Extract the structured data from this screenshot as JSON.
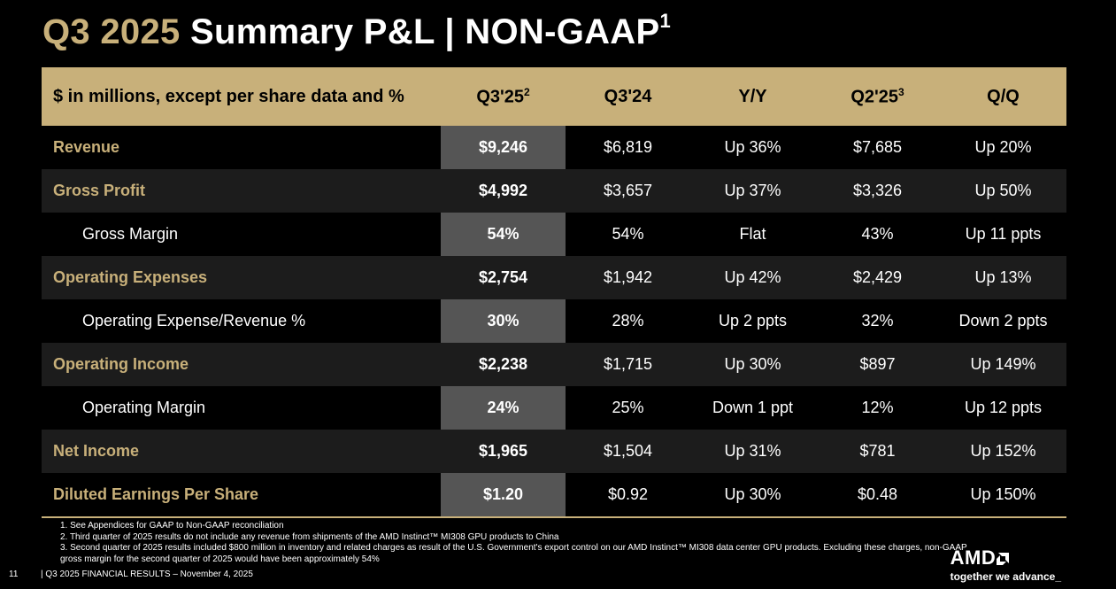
{
  "title": {
    "accent": "Q3 2025",
    "rest": "Summary P&L  |  NON-GAAP",
    "sup": "1"
  },
  "header": {
    "label": "$ in millions, except per share data and %",
    "q325": "Q3'25",
    "q325_sup": "2",
    "q324": "Q3'24",
    "yy": "Y/Y",
    "q225": "Q2'25",
    "q225_sup": "3",
    "qq": "Q/Q"
  },
  "rows": [
    {
      "label": "Revenue",
      "type": "main",
      "q325": "$9,246",
      "q324": "$6,819",
      "yy": "Up 36%",
      "q225": "$7,685",
      "qq": "Up 20%"
    },
    {
      "label": "Gross Profit",
      "type": "main",
      "q325": "$4,992",
      "q324": "$3,657",
      "yy": "Up 37%",
      "q225": "$3,326",
      "qq": "Up 50%"
    },
    {
      "label": "Gross Margin",
      "type": "sub",
      "q325": "54%",
      "q324": "54%",
      "yy": "Flat",
      "q225": "43%",
      "qq": "Up 11 ppts"
    },
    {
      "label": "Operating Expenses",
      "type": "main",
      "q325": "$2,754",
      "q324": "$1,942",
      "yy": "Up 42%",
      "q225": "$2,429",
      "qq": "Up 13%"
    },
    {
      "label": "Operating Expense/Revenue %",
      "type": "sub",
      "q325": "30%",
      "q324": "28%",
      "yy": "Up 2 ppts",
      "q225": "32%",
      "qq": "Down 2 ppts"
    },
    {
      "label": "Operating Income",
      "type": "main",
      "q325": "$2,238",
      "q324": "$1,715",
      "yy": "Up 30%",
      "q225": "$897",
      "qq": "Up 149%"
    },
    {
      "label": "Operating Margin",
      "type": "sub",
      "q325": "24%",
      "q324": "25%",
      "yy": "Down 1 ppt",
      "q225": "12%",
      "qq": "Up 12 ppts"
    },
    {
      "label": "Net Income",
      "type": "main",
      "q325": "$1,965",
      "q324": "$1,504",
      "yy": "Up 31%",
      "q225": "$781",
      "qq": "Up 152%"
    },
    {
      "label": "Diluted Earnings Per Share",
      "type": "main",
      "q325": "$1.20",
      "q324": "$0.92",
      "yy": "Up 30%",
      "q225": "$0.48",
      "qq": "Up 150%"
    }
  ],
  "footnotes": [
    "1. See Appendices for GAAP to Non-GAAP reconciliation",
    "2. Third quarter of 2025 results do not include any revenue from shipments of the AMD Instinct™ MI308 GPU products to China",
    "3. Second quarter of 2025 results included $800 million in inventory and related charges as result of the U.S. Government's export control on our AMD Instinct™ MI308 data center GPU products. Excluding these charges, non-GAAP gross margin for the second quarter of 2025 would have been approximately 54%"
  ],
  "footer": {
    "page": "11",
    "text": "|  Q3 2025 FINANCIAL RESULTS – November 4, 2025"
  },
  "brand": {
    "logo": "AMD",
    "tagline": "together we advance_"
  },
  "colors": {
    "accent": "#c8b07a",
    "highlight": "#555555",
    "row_alt": "#1c1c1c"
  }
}
